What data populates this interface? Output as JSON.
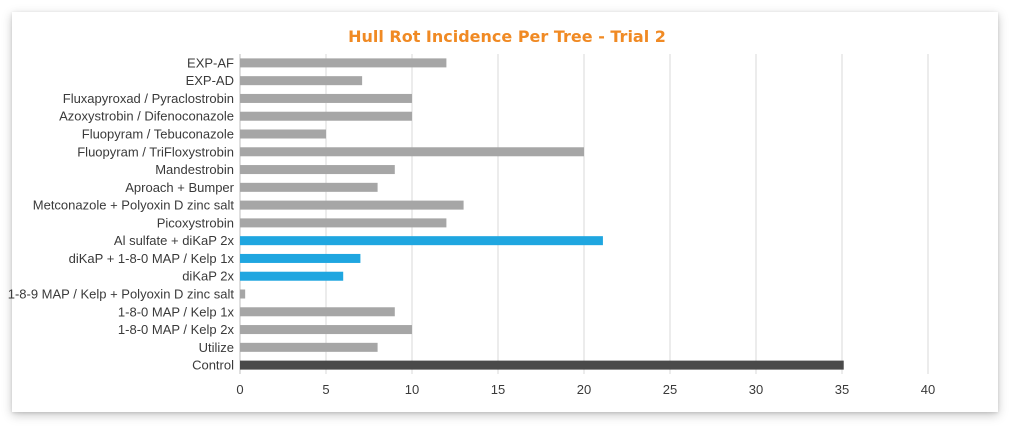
{
  "chart_data": {
    "type": "bar",
    "orientation": "horizontal",
    "title": "Hull Rot Incidence Per Tree - Trial 2",
    "xlim": [
      0,
      40
    ],
    "xticks": [
      0,
      5,
      10,
      15,
      20,
      25,
      30,
      35,
      40
    ],
    "grid": true,
    "legend": "none",
    "colors": {
      "title": "#f08a24",
      "default_bar": "#a6a6a6",
      "highlight_bar": "#1fa6e0",
      "control_bar": "#4a4a4a"
    },
    "categories": [
      "EXP-AF",
      "EXP-AD",
      "Fluxapyroxad / Pyraclostrobin",
      "Azoxystrobin / Difenoconazole",
      "Fluopyram / Tebuconazole",
      "Fluopyram / TriFloxystrobin",
      "Mandestrobin",
      "Aproach + Bumper",
      "Metconazole + Polyoxin D zinc salt",
      "Picoxystrobin",
      "Al sulfate + diKaP 2x",
      "diKaP + 1-8-0 MAP / Kelp 1x",
      "diKaP 2x",
      "1-8-9 MAP / Kelp + Polyoxin D zinc salt",
      "1-8-0 MAP / Kelp 1x",
      "1-8-0 MAP / Kelp 2x",
      "Utilize",
      "Control"
    ],
    "values": [
      12,
      7.1,
      10,
      10,
      5,
      20,
      9,
      8,
      13,
      12,
      21.1,
      7,
      6,
      0.3,
      9,
      10,
      8,
      35.1
    ],
    "bar_color_keys": [
      "default_bar",
      "default_bar",
      "default_bar",
      "default_bar",
      "default_bar",
      "default_bar",
      "default_bar",
      "default_bar",
      "default_bar",
      "default_bar",
      "highlight_bar",
      "highlight_bar",
      "highlight_bar",
      "default_bar",
      "default_bar",
      "default_bar",
      "default_bar",
      "control_bar"
    ]
  }
}
